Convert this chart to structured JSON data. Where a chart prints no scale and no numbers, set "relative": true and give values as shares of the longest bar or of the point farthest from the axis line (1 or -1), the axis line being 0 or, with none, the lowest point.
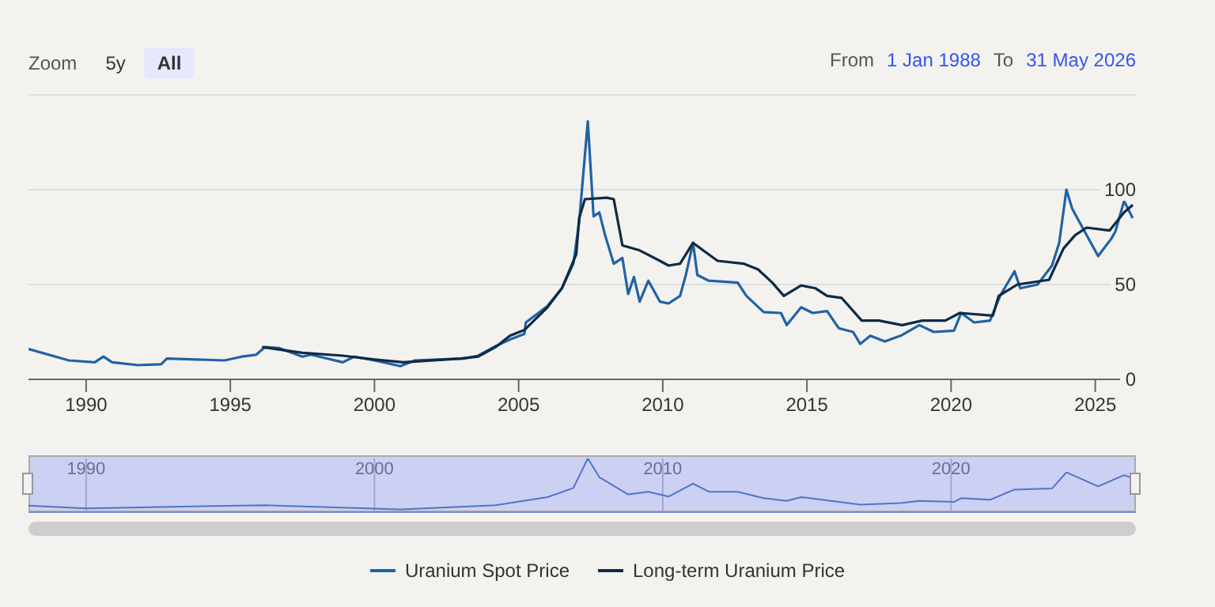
{
  "chart_data": [
    {
      "type": "line",
      "annotations": [
        "Zoom",
        "5y",
        "All",
        "From",
        "1 Jan 1988",
        "To",
        "31 May 2026"
      ],
      "xlim": [
        1988,
        2026.41
      ],
      "xticks": [
        1990,
        1995,
        2000,
        2005,
        2010,
        2015,
        2020,
        2025
      ],
      "ylim": [
        0,
        150
      ],
      "yticks": [
        0,
        50,
        100,
        {
          "value": 150,
          "label": null
        }
      ],
      "grid": "y",
      "legend": "bottom",
      "marker": "none",
      "line_style": "solid",
      "series": [
        {
          "name": "Uranium Spot Price",
          "color": "#1f63a6",
          "x": [
            1988,
            1989.4,
            1990.3,
            1990.6,
            1990.9,
            1991.8,
            1992.6,
            1992.8,
            1994.8,
            1995.4,
            1995.9,
            1996.2,
            1996.7,
            1997.5,
            1997.8,
            1998.9,
            1999.3,
            2000,
            2000.9,
            2001.4,
            2003.1,
            2003.6,
            2004.2,
            2004.7,
            2005.2,
            2005.25,
            2006,
            2006.5,
            2006.9,
            2007.1,
            2007.4,
            2007.6,
            2007.8,
            2008,
            2008.3,
            2008.6,
            2008.8,
            2009,
            2009.2,
            2009.5,
            2009.9,
            2010.2,
            2010.6,
            2010.8,
            2011.05,
            2011.2,
            2011.6,
            2012.6,
            2012.9,
            2013.5,
            2014.1,
            2014.3,
            2014.8,
            2015.2,
            2015.7,
            2016.1,
            2016.6,
            2016.85,
            2017.2,
            2017.7,
            2018.25,
            2018.9,
            2019.4,
            2020.1,
            2020.35,
            2020.8,
            2021.35,
            2021.7,
            2022.2,
            2022.4,
            2023,
            2023.5,
            2023.75,
            2024,
            2024.2,
            2024.45,
            2025.1,
            2025.55,
            2025.7,
            2026,
            2026.3
          ],
          "values": [
            16,
            10,
            9,
            12,
            9,
            7.5,
            8,
            11,
            10,
            12,
            13,
            17,
            16.5,
            12,
            13,
            9,
            12,
            10,
            7,
            10,
            11,
            12.5,
            17.5,
            21,
            24,
            30,
            38.6,
            48,
            61,
            83,
            136,
            86,
            88,
            76,
            61,
            64,
            45,
            54,
            41,
            52,
            41,
            40,
            44,
            55,
            72,
            55,
            52,
            51,
            44,
            35.5,
            35,
            28.6,
            38,
            35,
            36,
            27,
            25,
            18.7,
            23,
            20,
            23,
            28.6,
            25,
            25.7,
            35,
            30,
            31,
            44,
            57,
            48,
            50,
            60,
            72,
            100,
            90,
            83,
            65,
            74,
            78,
            94,
            85
          ]
        },
        {
          "name": "Long-term Uranium Price",
          "color": "#0e2a44",
          "x": [
            1996.1,
            1997.5,
            1998.9,
            2000,
            2001,
            2003,
            2003.6,
            2004.2,
            2004.7,
            2005.2,
            2006,
            2006.5,
            2007,
            2007.1,
            2007.3,
            2008.05,
            2008.3,
            2008.6,
            2009.2,
            2009.9,
            2010.2,
            2010.6,
            2011.05,
            2011.4,
            2011.9,
            2012.8,
            2013.3,
            2013.8,
            2014.2,
            2014.8,
            2015.3,
            2015.7,
            2016.2,
            2016.9,
            2017.5,
            2018.3,
            2019,
            2019.8,
            2020.3,
            2021.45,
            2021.65,
            2022.3,
            2023.4,
            2023.9,
            2024.3,
            2024.7,
            2025.5,
            2026,
            2026.3
          ],
          "values": [
            17,
            14,
            12.5,
            10.5,
            9,
            11,
            12,
            17,
            23,
            26,
            38,
            48,
            66,
            85,
            95,
            95.8,
            95,
            70.6,
            68,
            62.5,
            60,
            61,
            72,
            68,
            62.5,
            61,
            58,
            51,
            44,
            49.5,
            48,
            44,
            43,
            31,
            31,
            28.6,
            31,
            31,
            35,
            33.6,
            44,
            50,
            52.5,
            69,
            76,
            80,
            78.5,
            88,
            92
          ]
        }
      ]
    },
    {
      "type": "line",
      "relative": true,
      "xlim": [
        1988,
        2026.41
      ],
      "xticks": [
        1990,
        2000,
        2010,
        2020
      ],
      "tick_labels": "x",
      "grid": "x",
      "marker": "none",
      "series": [
        {
          "color": "#4f74c9",
          "x": [
            1988,
            1990,
            1996.2,
            2000.9,
            2004.2,
            2006,
            2006.9,
            2007.4,
            2007.8,
            2008.8,
            2009.5,
            2010.2,
            2011.05,
            2011.6,
            2012.6,
            2013.5,
            2014.3,
            2014.8,
            2016.85,
            2018.25,
            2018.9,
            2020.1,
            2020.35,
            2021.35,
            2022.2,
            2023.5,
            2024,
            2025.1,
            2026,
            2026.3
          ],
          "values": [
            0.12,
            0.07,
            0.13,
            0.05,
            0.13,
            0.28,
            0.45,
            1,
            0.65,
            0.33,
            0.38,
            0.29,
            0.53,
            0.38,
            0.38,
            0.26,
            0.21,
            0.28,
            0.14,
            0.17,
            0.21,
            0.19,
            0.26,
            0.23,
            0.42,
            0.44,
            0.74,
            0.48,
            0.69,
            0.63
          ]
        }
      ]
    }
  ]
}
